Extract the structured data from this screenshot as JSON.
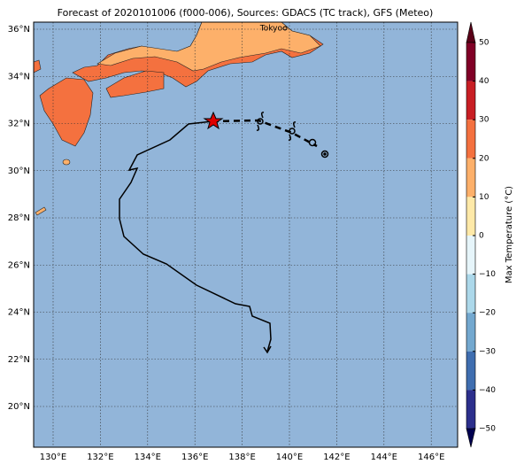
{
  "title": "Forecast of 2020101006 (f000-006), Sources: GDACS (TC track), GFS (Meteo)",
  "map": {
    "place_labels": [
      "Tokyo"
    ],
    "lon_labels": [
      "130°E",
      "132°E",
      "134°E",
      "136°E",
      "138°E",
      "140°E",
      "142°E",
      "144°E",
      "146°E"
    ],
    "lat_labels": [
      "36°N",
      "34°N",
      "32°N",
      "30°N",
      "28°N",
      "26°N",
      "24°N",
      "22°N",
      "20°N"
    ]
  },
  "colorbar": {
    "label": "Max Temperature (°C)",
    "tick_labels": [
      "50",
      "40",
      "30",
      "20",
      "10",
      "0",
      "−10",
      "−20",
      "−30",
      "−40",
      "−50"
    ]
  }
}
